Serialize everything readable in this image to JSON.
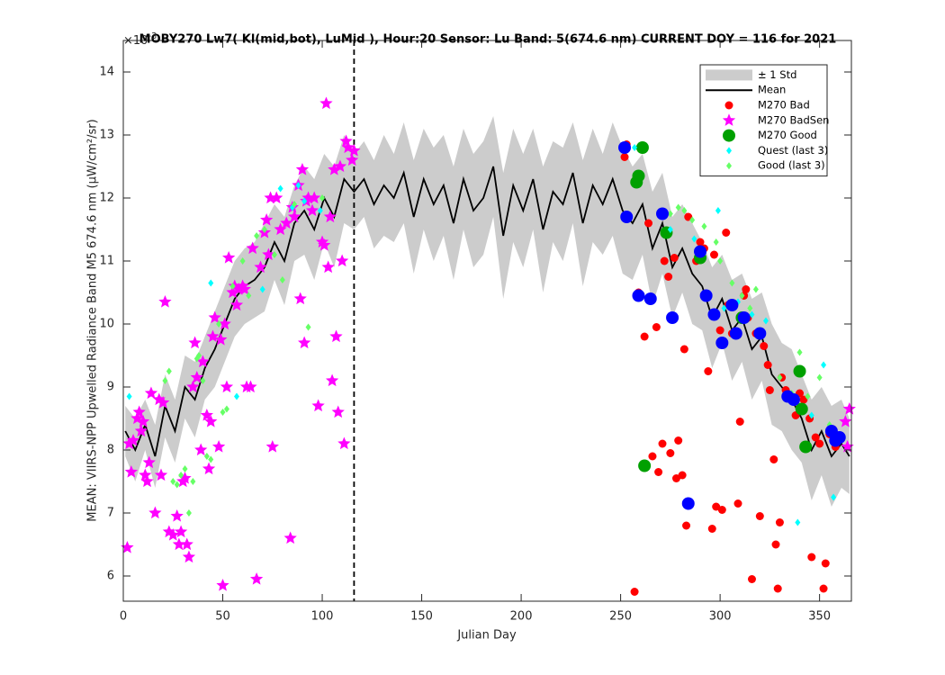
{
  "chart_data": {
    "type": "scatter",
    "title": "MOBY270   Lw7( Kl(mid,bot), LuMid ),   Hour:20 Sensor: Lu Band: 5(674.6 nm)   CURRENT DOY = 116 for 2021",
    "y_multiplier": "×10",
    "y_multiplier_exponent": "-3",
    "xlabel": "Julian Day",
    "ylabel": "MEAN: VIIRS-NPP Upwelled Radiance Band M5 674.6 nm (μW/cm²/sr)",
    "xlim": [
      0,
      366
    ],
    "ylim": [
      5.6,
      14.5
    ],
    "xticks": [
      0,
      50,
      100,
      150,
      200,
      250,
      300,
      350
    ],
    "yticks": [
      6,
      7,
      8,
      9,
      10,
      11,
      12,
      13,
      14
    ],
    "vline": 116,
    "legend_position": "northeast",
    "band": {
      "name": "± 1 Std",
      "color": "#cccccc",
      "values": [
        0.4,
        0.5,
        0.4,
        0.5,
        0.5,
        0.5,
        0.5,
        0.6,
        0.5,
        0.6,
        0.6,
        0.6,
        0.6,
        0.6,
        0.7,
        0.6,
        0.7,
        0.6,
        0.7,
        0.8,
        0.7,
        0.8,
        0.7,
        0.6,
        0.6,
        0.7,
        0.8,
        0.7,
        0.8,
        0.9,
        0.8,
        0.9,
        0.8,
        0.9,
        0.8,
        0.9,
        0.9,
        0.8,
        1.0,
        0.9,
        0.9,
        0.8,
        1.0,
        0.8,
        0.9,
        0.8,
        1.0,
        0.9,
        0.8,
        0.9,
        1.0,
        0.9,
        0.8,
        0.9,
        0.8,
        0.8,
        0.7,
        0.8,
        0.7,
        0.8,
        0.7,
        0.8,
        0.7,
        0.8,
        0.7,
        0.8,
        0.7,
        0.8,
        0.7,
        0.8,
        0.7,
        0.8,
        0.7,
        0.6
      ]
    },
    "mean": {
      "name": "Mean",
      "color": "#000000",
      "x": [
        1,
        6,
        11,
        16,
        21,
        26,
        31,
        36,
        41,
        46,
        51,
        56,
        61,
        66,
        71,
        76,
        81,
        86,
        91,
        96,
        101,
        106,
        111,
        116,
        121,
        126,
        131,
        136,
        141,
        146,
        151,
        156,
        161,
        166,
        171,
        176,
        181,
        186,
        191,
        196,
        201,
        206,
        211,
        216,
        221,
        226,
        231,
        236,
        241,
        246,
        251,
        256,
        261,
        266,
        271,
        276,
        281,
        286,
        291,
        296,
        301,
        306,
        311,
        316,
        321,
        326,
        331,
        336,
        341,
        346,
        351,
        356,
        361,
        365
      ],
      "values": [
        8.3,
        8.0,
        8.4,
        7.9,
        8.7,
        8.3,
        9.0,
        8.8,
        9.3,
        9.6,
        10.0,
        10.4,
        10.6,
        10.7,
        10.9,
        11.3,
        11.0,
        11.6,
        11.8,
        11.5,
        12.0,
        11.7,
        12.3,
        12.1,
        12.3,
        11.9,
        12.2,
        12.0,
        12.4,
        11.7,
        12.3,
        11.9,
        12.2,
        11.6,
        12.3,
        11.8,
        12.0,
        12.5,
        11.4,
        12.2,
        11.8,
        12.3,
        11.5,
        12.1,
        11.9,
        12.4,
        11.6,
        12.2,
        11.9,
        12.3,
        11.8,
        11.6,
        11.9,
        11.2,
        11.6,
        10.9,
        11.2,
        10.8,
        10.6,
        10.1,
        10.4,
        9.9,
        10.1,
        9.6,
        9.8,
        9.2,
        9.0,
        8.8,
        8.5,
        8.0,
        8.3,
        7.9,
        8.1,
        7.9
      ]
    },
    "series": [
      {
        "name": "M270 Bad",
        "color": "#ff0000",
        "marker": "dot",
        "x": [
          252,
          253,
          257,
          259,
          262,
          264,
          266,
          268,
          269,
          271,
          272,
          274,
          275,
          277,
          278,
          279,
          281,
          282,
          283,
          284,
          288,
          290,
          292,
          294,
          296,
          297,
          298,
          300,
          301,
          303,
          304,
          306,
          309,
          310,
          312,
          313,
          314,
          316,
          318,
          320,
          322,
          324,
          325,
          327,
          328,
          329,
          330,
          331,
          333,
          336,
          338,
          340,
          342,
          345,
          346,
          348,
          350,
          352,
          353,
          355,
          358,
          360
        ],
        "values": [
          12.65,
          12.85,
          5.75,
          10.5,
          9.8,
          11.6,
          7.9,
          9.95,
          7.65,
          8.1,
          11.0,
          10.75,
          7.95,
          11.05,
          7.55,
          8.15,
          7.6,
          9.6,
          6.8,
          11.7,
          11.0,
          11.3,
          11.2,
          9.25,
          6.75,
          11.1,
          7.1,
          9.9,
          7.05,
          11.45,
          10.3,
          9.85,
          7.15,
          8.45,
          10.45,
          10.55,
          10.1,
          5.95,
          9.85,
          6.95,
          9.65,
          9.35,
          8.95,
          7.85,
          6.5,
          5.8,
          6.85,
          9.15,
          8.95,
          8.85,
          8.55,
          8.9,
          8.8,
          8.5,
          6.3,
          8.2,
          8.1,
          5.8,
          6.2,
          8.25,
          8.05,
          8.2
        ]
      },
      {
        "name": "M270 BadSen",
        "color": "#ff00ff",
        "marker": "star",
        "x": [
          3,
          5,
          2,
          4,
          7,
          8,
          9,
          10,
          11,
          12,
          13,
          14,
          16,
          18,
          19,
          20,
          21,
          23,
          25,
          27,
          28,
          29,
          30,
          31,
          32,
          33,
          35,
          36,
          37,
          39,
          40,
          42,
          43,
          44,
          45,
          46,
          48,
          49,
          50,
          51,
          52,
          53,
          55,
          56,
          57,
          58,
          60,
          61,
          62,
          64,
          65,
          67,
          69,
          71,
          72,
          73,
          74,
          75,
          77,
          79,
          82,
          84,
          85,
          86,
          88,
          89,
          90,
          91,
          92,
          93,
          95,
          96,
          98,
          100,
          101,
          102,
          103,
          104,
          105,
          106,
          107,
          108,
          109,
          110,
          111,
          112,
          113,
          115,
          116,
          363,
          364,
          365
        ],
        "values": [
          8.1,
          8.15,
          6.45,
          7.65,
          8.5,
          8.6,
          8.3,
          8.45,
          7.6,
          7.5,
          7.8,
          8.9,
          7.0,
          8.8,
          7.6,
          8.75,
          10.35,
          6.7,
          6.65,
          6.95,
          6.5,
          6.7,
          7.5,
          7.55,
          6.5,
          6.3,
          9.0,
          9.7,
          9.15,
          8.0,
          9.4,
          8.55,
          7.7,
          8.45,
          9.8,
          10.1,
          8.05,
          9.75,
          5.85,
          10.0,
          9.0,
          11.05,
          10.5,
          10.6,
          10.3,
          10.55,
          10.6,
          10.55,
          9.0,
          9.0,
          11.2,
          5.95,
          10.9,
          11.45,
          11.65,
          11.1,
          12.0,
          8.05,
          12.0,
          11.5,
          11.6,
          6.6,
          11.85,
          11.7,
          12.2,
          10.4,
          12.45,
          9.7,
          11.95,
          12.0,
          11.8,
          12.0,
          8.7,
          11.3,
          11.25,
          13.5,
          10.9,
          11.7,
          9.1,
          12.45,
          9.8,
          8.6,
          12.5,
          11.0,
          8.1,
          12.9,
          12.8,
          12.6,
          12.75,
          8.45,
          8.05,
          8.65
        ]
      },
      {
        "name": "M270 Good",
        "color": "#00a000",
        "marker": "circle",
        "x": [
          258,
          259,
          261,
          262,
          273,
          290,
          311,
          340,
          341,
          343
        ],
        "values": [
          12.25,
          12.35,
          12.8,
          7.75,
          11.45,
          11.05,
          10.1,
          9.25,
          8.65,
          8.05
        ]
      },
      {
        "name": "Quest (last 3)",
        "color": "#00ffff",
        "marker": "diamond",
        "x": [
          3,
          44,
          57,
          70,
          79,
          85,
          88,
          91,
          99,
          257,
          275,
          287,
          299,
          302,
          309,
          316,
          323,
          339,
          346,
          352,
          357,
          359
        ],
        "values": [
          8.85,
          10.65,
          8.85,
          10.55,
          12.15,
          11.85,
          12.2,
          11.95,
          11.8,
          12.8,
          11.5,
          11.35,
          11.8,
          10.25,
          10.35,
          10.15,
          10.05,
          6.85,
          8.55,
          9.35,
          7.25,
          8.2
        ]
      },
      {
        "name": "Good (last 3)",
        "color": "#66ff66",
        "marker": "diamond",
        "x": [
          21,
          23,
          25,
          27,
          29,
          31,
          33,
          35,
          37,
          38,
          40,
          42,
          44,
          48,
          50,
          52,
          55,
          60,
          63,
          67,
          71,
          76,
          80,
          86,
          93,
          100,
          275,
          279,
          282,
          286,
          292,
          298,
          300,
          306,
          311,
          315,
          318,
          330,
          336,
          340,
          344,
          350,
          355
        ],
        "values": [
          9.1,
          9.25,
          7.5,
          7.45,
          7.6,
          7.7,
          7.0,
          7.5,
          9.45,
          9.5,
          9.1,
          7.9,
          7.85,
          10.0,
          8.6,
          8.65,
          10.6,
          11.0,
          10.45,
          11.4,
          11.5,
          11.1,
          10.7,
          11.9,
          9.95,
          12.0,
          11.75,
          11.85,
          11.8,
          11.65,
          11.55,
          11.3,
          11.0,
          10.65,
          10.45,
          10.25,
          10.55,
          9.15,
          8.9,
          9.55,
          8.85,
          9.15,
          8.4
        ]
      },
      {
        "color": "#0000ff",
        "marker": "circle",
        "x": [
          252,
          253,
          259,
          265,
          271,
          276,
          284,
          290,
          293,
          297,
          301,
          306,
          308,
          312,
          320,
          334,
          337,
          356,
          358,
          360
        ],
        "values": [
          12.8,
          11.7,
          10.45,
          10.4,
          11.75,
          10.1,
          7.15,
          11.15,
          10.45,
          10.15,
          9.7,
          10.3,
          9.85,
          10.1,
          9.85,
          8.85,
          8.8,
          8.3,
          8.15,
          8.2
        ]
      }
    ]
  }
}
